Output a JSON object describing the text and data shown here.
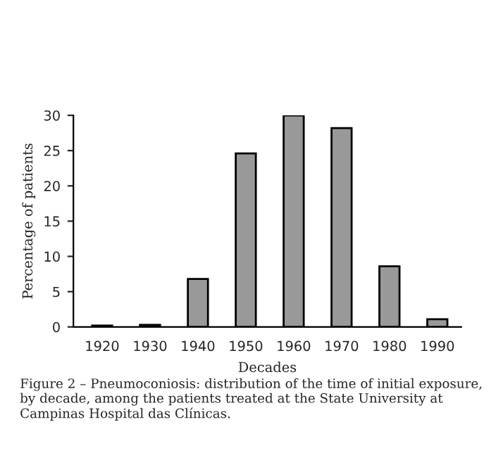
{
  "chart_data": {
    "type": "bar",
    "xlabel": "Decades",
    "ylabel": "Percentage of patients",
    "categories": [
      "1920",
      "1930",
      "1940",
      "1950",
      "1960",
      "1970",
      "1980",
      "1990"
    ],
    "values": [
      0.2,
      0.3,
      6.8,
      24.6,
      30,
      28.2,
      8.6,
      1.1
    ],
    "color": "#999999",
    "ylim": [
      0,
      30
    ],
    "yticks": [
      0,
      5,
      10,
      15,
      20,
      25,
      30
    ],
    "grid": false,
    "annotations": [
      "Figure 2 – Pneumoconiosis: distribution of the time of initial exposure, by decade, among the patients treated at the State University at Campinas Hospital das Clínicas."
    ]
  }
}
